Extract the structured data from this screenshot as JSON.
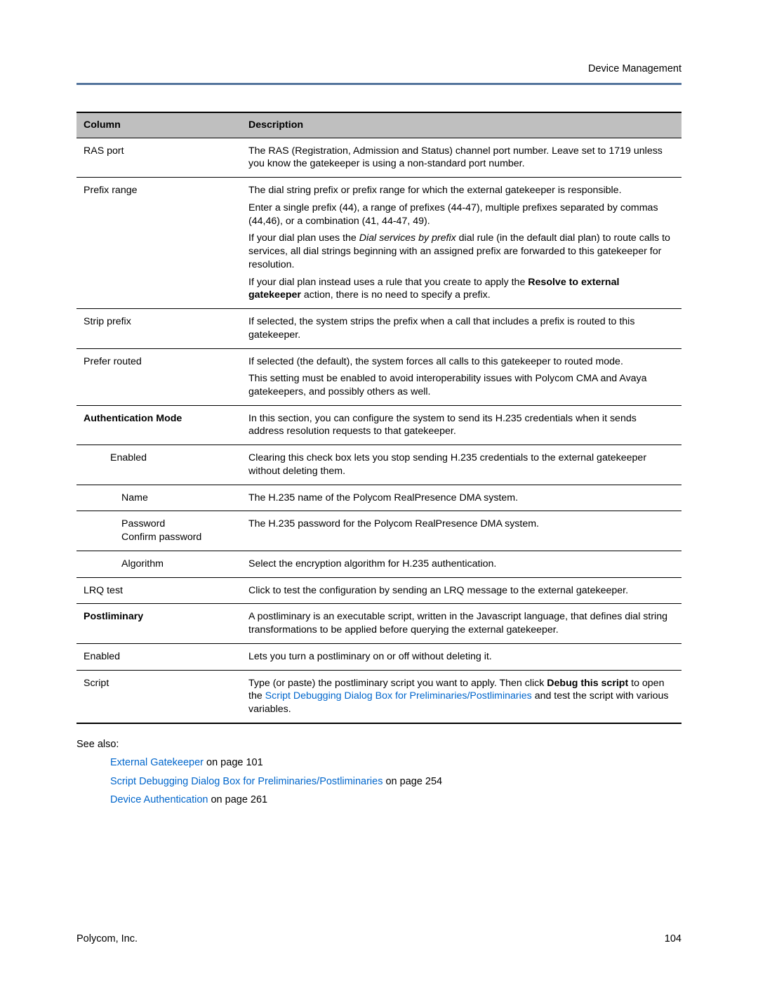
{
  "header": {
    "section": "Device Management"
  },
  "table": {
    "headers": {
      "col1": "Column",
      "col2": "Description"
    },
    "rows": {
      "ras_port": {
        "label": "RAS port",
        "desc": "The RAS (Registration, Admission and Status) channel port number. Leave set to 1719 unless you know the gatekeeper is using a non-standard port number."
      },
      "prefix_range": {
        "label": "Prefix range",
        "p1": "The dial string prefix or prefix range for which the external gatekeeper is responsible.",
        "p2": "Enter a single prefix (44), a range of prefixes (44-47), multiple prefixes separated by commas (44,46), or a combination (41, 44-47, 49).",
        "p3a": "If your dial plan uses the ",
        "p3_italic": "Dial services by prefix",
        "p3b": " dial rule (in the default dial plan) to route calls to services, all dial strings beginning with an assigned prefix are forwarded to this gatekeeper for resolution.",
        "p4a": "If your dial plan instead uses a rule that you create to apply the ",
        "p4_bold": "Resolve to external gatekeeper",
        "p4b": " action, there is no need to specify a prefix."
      },
      "strip_prefix": {
        "label": "Strip prefix",
        "desc": "If selected, the system strips the prefix when a call that includes a prefix is routed to this gatekeeper."
      },
      "prefer_routed": {
        "label": "Prefer routed",
        "p1": "If selected (the default), the system forces all calls to this gatekeeper to routed mode.",
        "p2": "This setting must be enabled to avoid interoperability issues with Polycom CMA and Avaya gatekeepers, and possibly others as well."
      },
      "auth_mode": {
        "label": "Authentication Mode",
        "desc": "In this section, you can configure the system to send its H.235 credentials when it sends address resolution requests to that gatekeeper."
      },
      "auth_enabled": {
        "label": "Enabled",
        "desc": "Clearing this check box lets you stop sending H.235 credentials to the external gatekeeper without deleting them."
      },
      "auth_name": {
        "label": "Name",
        "desc": "The H.235 name of the Polycom RealPresence DMA system."
      },
      "auth_password": {
        "label1": "Password",
        "label2": "Confirm password",
        "desc": "The H.235 password for the Polycom RealPresence DMA system."
      },
      "auth_algorithm": {
        "label": "Algorithm",
        "desc": "Select the encryption algorithm for H.235 authentication."
      },
      "lrq_test": {
        "label": "LRQ test",
        "desc": "Click to test the configuration by sending an LRQ message to the external gatekeeper."
      },
      "postliminary": {
        "label": "Postliminary",
        "desc": "A postliminary is an executable script, written in the Javascript language, that defines dial string transformations to be applied before querying the external gatekeeper."
      },
      "post_enabled": {
        "label": "Enabled",
        "desc": "Lets you turn a postliminary on or off without deleting it."
      },
      "script": {
        "label": "Script",
        "p_a": "Type (or paste) the postliminary script you want to apply. Then click ",
        "p_bold": "Debug this script",
        "p_b": " to open the ",
        "p_link": "Script Debugging Dialog Box for Preliminaries/Postliminaries",
        "p_c": " and test the script with various variables."
      }
    }
  },
  "see_also": {
    "heading": "See also:",
    "items": {
      "a": {
        "link": "External Gatekeeper",
        "rest": " on page 101"
      },
      "b": {
        "link": "Script Debugging Dialog Box for Preliminaries/Postliminaries",
        "rest": " on page 254"
      },
      "c": {
        "link": "Device Authentication",
        "rest": " on page 261"
      }
    }
  },
  "footer": {
    "company": "Polycom, Inc.",
    "page": "104"
  }
}
